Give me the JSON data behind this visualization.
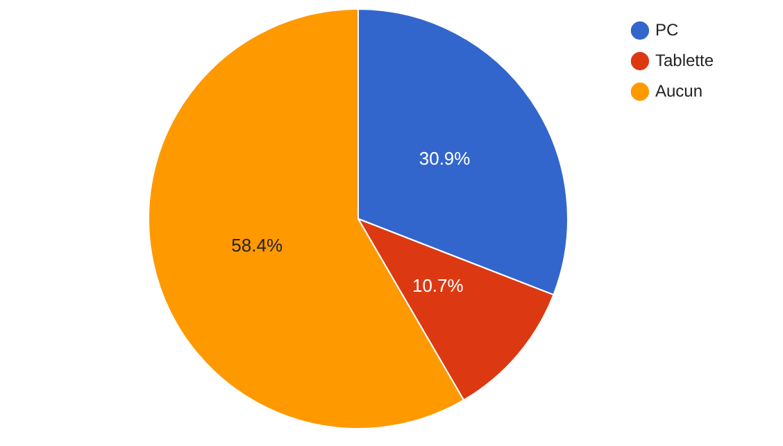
{
  "chart_data": {
    "type": "pie",
    "categories": [
      "PC",
      "Tablette",
      "Aucun"
    ],
    "values": [
      30.9,
      10.7,
      58.4
    ],
    "colors": [
      "#3366cc",
      "#dc3912",
      "#ff9900"
    ],
    "value_labels": [
      "30.9%",
      "10.7%",
      "58.4%"
    ],
    "legend": "top right"
  }
}
